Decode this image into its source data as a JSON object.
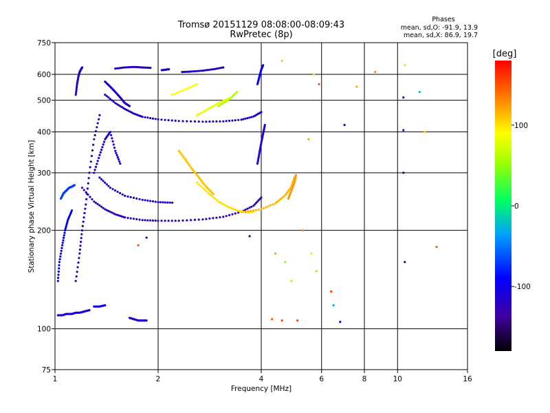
{
  "chart_data": {
    "type": "scatter",
    "title": "Tromsø 20151129 08:08:00-08:09:43",
    "subtitle": "RwPretec (8p)",
    "stats": {
      "heading": "Phases",
      "line_o": "mean, sd,O: -91.9, 13.9",
      "line_x": "mean, sd,X: 86.9, 19.7"
    },
    "xlabel": "Frequency [MHz]",
    "ylabel": "Stationary phase Virtual Height [km]",
    "x_scale": "log",
    "y_scale": "log",
    "xlim": [
      1,
      16
    ],
    "ylim": [
      75,
      750
    ],
    "x_ticks": [
      1,
      2,
      4,
      6,
      8,
      10,
      16
    ],
    "x_tick_labels": [
      "1",
      "2",
      "4",
      "6",
      "8",
      "10",
      "16"
    ],
    "y_ticks": [
      75,
      100,
      200,
      300,
      400,
      500,
      600,
      750
    ],
    "y_tick_labels": [
      "75",
      "100",
      "200",
      "300",
      "400",
      "500",
      "600",
      "750"
    ],
    "grid": true,
    "colorbar": {
      "label": "[deg]",
      "range": [
        -180,
        180
      ],
      "ticks": [
        -100,
        0,
        100
      ],
      "tick_labels": [
        "-100",
        "0",
        "100"
      ]
    },
    "traces": [
      {
        "x": [
          1.02,
          1.05,
          1.08,
          1.12,
          1.15,
          1.18,
          1.22,
          1.26
        ],
        "y": [
          110,
          110,
          111,
          111,
          112,
          112,
          113,
          114
        ],
        "phase": -110
      },
      {
        "x": [
          1.02,
          1.03,
          1.05,
          1.07,
          1.09,
          1.12
        ],
        "y": [
          140,
          160,
          180,
          200,
          215,
          230
        ],
        "phase": -90
      },
      {
        "x": [
          1.04,
          1.06,
          1.08,
          1.1,
          1.12,
          1.14
        ],
        "y": [
          250,
          260,
          265,
          270,
          272,
          275
        ],
        "phase": -70
      },
      {
        "x": [
          1.15,
          1.18,
          1.2,
          1.23,
          1.26,
          1.3,
          1.35
        ],
        "y": [
          140,
          170,
          200,
          240,
          300,
          380,
          450
        ],
        "phase": -120
      },
      {
        "x": [
          1.15,
          1.16,
          1.17,
          1.18,
          1.19,
          1.2
        ],
        "y": [
          520,
          560,
          590,
          610,
          620,
          630
        ],
        "phase": -120
      },
      {
        "x": [
          1.2,
          1.3,
          1.4,
          1.5,
          1.6,
          1.8,
          2.0,
          2.3,
          2.7,
          3.1,
          3.5,
          3.8,
          4.0
        ],
        "y": [
          270,
          245,
          232,
          224,
          219,
          215,
          214,
          214,
          216,
          220,
          228,
          238,
          252
        ],
        "phase": -125
      },
      {
        "x": [
          1.35,
          1.45,
          1.6,
          1.8,
          2.0,
          2.2
        ],
        "y": [
          290,
          270,
          255,
          248,
          244,
          243
        ],
        "phase": -115
      },
      {
        "x": [
          1.3,
          1.35,
          1.4,
          1.45,
          1.5,
          1.55
        ],
        "y": [
          300,
          340,
          380,
          400,
          350,
          320
        ],
        "phase": -110
      },
      {
        "x": [
          1.4,
          1.5,
          1.6,
          1.7,
          1.8,
          2.0,
          2.3,
          2.7,
          3.1,
          3.5,
          3.8,
          4.0
        ],
        "y": [
          520,
          490,
          470,
          455,
          445,
          437,
          432,
          430,
          431,
          436,
          446,
          460
        ],
        "phase": -120
      },
      {
        "x": [
          1.4,
          1.45,
          1.5,
          1.55,
          1.6,
          1.65
        ],
        "y": [
          570,
          550,
          530,
          510,
          490,
          480
        ],
        "phase": -115
      },
      {
        "x": [
          1.5,
          1.6,
          1.7,
          1.8,
          1.9
        ],
        "y": [
          625,
          630,
          632,
          630,
          628
        ],
        "phase": -120
      },
      {
        "x": [
          2.05,
          2.1,
          2.15
        ],
        "y": [
          618,
          620,
          622
        ],
        "phase": -125
      },
      {
        "x": [
          2.35,
          2.5,
          2.7,
          2.9,
          3.1
        ],
        "y": [
          610,
          612,
          616,
          622,
          630
        ],
        "phase": -115
      },
      {
        "x": [
          2.6,
          2.8,
          3.0,
          3.2,
          3.4,
          3.6,
          3.8
        ],
        "y": [
          280,
          260,
          245,
          236,
          230,
          227,
          228
        ],
        "phase": 100
      },
      {
        "x": [
          3.6,
          4.0,
          4.4,
          4.7,
          4.9,
          5.0
        ],
        "y": [
          228,
          232,
          242,
          256,
          272,
          290
        ],
        "phase": 115
      },
      {
        "x": [
          4.8,
          4.9,
          5.0,
          5.05
        ],
        "y": [
          250,
          265,
          280,
          295
        ],
        "phase": 125
      },
      {
        "x": [
          2.3,
          2.4,
          2.5,
          2.6,
          2.7,
          2.8,
          2.9
        ],
        "y": [
          350,
          330,
          310,
          295,
          280,
          268,
          258
        ],
        "phase": 110
      },
      {
        "x": [
          3.9,
          3.95,
          4.0,
          4.05,
          4.1
        ],
        "y": [
          320,
          345,
          370,
          395,
          420
        ],
        "phase": -110
      },
      {
        "x": [
          3.9,
          3.95,
          4.0,
          4.05
        ],
        "y": [
          560,
          590,
          620,
          640
        ],
        "phase": -95
      },
      {
        "x": [
          3.0,
          3.2,
          3.4
        ],
        "y": [
          480,
          500,
          530
        ],
        "phase": 60
      },
      {
        "x": [
          2.2,
          2.4,
          2.6
        ],
        "y": [
          520,
          540,
          560
        ],
        "phase": 90
      },
      {
        "x": [
          2.6,
          2.8,
          3.0,
          3.2
        ],
        "y": [
          450,
          470,
          490,
          505
        ],
        "phase": 80
      },
      {
        "x": [
          1.65,
          1.7,
          1.75,
          1.8,
          1.85
        ],
        "y": [
          108,
          107,
          106,
          106,
          106
        ],
        "phase": -120
      },
      {
        "x": [
          1.3,
          1.35,
          1.4
        ],
        "y": [
          117,
          117,
          118
        ],
        "phase": -100
      }
    ],
    "points": [
      {
        "x": 4.3,
        "y": 107,
        "phase": 150
      },
      {
        "x": 4.6,
        "y": 106,
        "phase": 155
      },
      {
        "x": 5.1,
        "y": 106,
        "phase": 155
      },
      {
        "x": 6.4,
        "y": 130,
        "phase": 160
      },
      {
        "x": 4.4,
        "y": 170,
        "phase": 120
      },
      {
        "x": 4.7,
        "y": 160,
        "phase": 50
      },
      {
        "x": 4.9,
        "y": 140,
        "phase": 60
      },
      {
        "x": 5.3,
        "y": 200,
        "phase": 130
      },
      {
        "x": 5.6,
        "y": 170,
        "phase": 70
      },
      {
        "x": 5.8,
        "y": 150,
        "phase": 50
      },
      {
        "x": 6.8,
        "y": 105,
        "phase": -100
      },
      {
        "x": 6.5,
        "y": 118,
        "phase": -30
      },
      {
        "x": 7.0,
        "y": 420,
        "phase": -120
      },
      {
        "x": 7.6,
        "y": 550,
        "phase": 120
      },
      {
        "x": 8.6,
        "y": 610,
        "phase": 130
      },
      {
        "x": 10.5,
        "y": 640,
        "phase": 60
      },
      {
        "x": 10.4,
        "y": 510,
        "phase": -120
      },
      {
        "x": 11.6,
        "y": 530,
        "phase": -20
      },
      {
        "x": 10.4,
        "y": 405,
        "phase": -120
      },
      {
        "x": 12.0,
        "y": 400,
        "phase": 110
      },
      {
        "x": 10.4,
        "y": 300,
        "phase": -150
      },
      {
        "x": 10.5,
        "y": 160,
        "phase": -150
      },
      {
        "x": 13.0,
        "y": 178,
        "phase": 150
      },
      {
        "x": 5.9,
        "y": 560,
        "phase": 155
      },
      {
        "x": 4.6,
        "y": 660,
        "phase": 110
      },
      {
        "x": 5.7,
        "y": 600,
        "phase": 100
      },
      {
        "x": 5.5,
        "y": 380,
        "phase": 120
      },
      {
        "x": 3.7,
        "y": 192,
        "phase": -150
      },
      {
        "x": 1.85,
        "y": 190,
        "phase": -120
      },
      {
        "x": 1.75,
        "y": 180,
        "phase": 150
      }
    ]
  }
}
